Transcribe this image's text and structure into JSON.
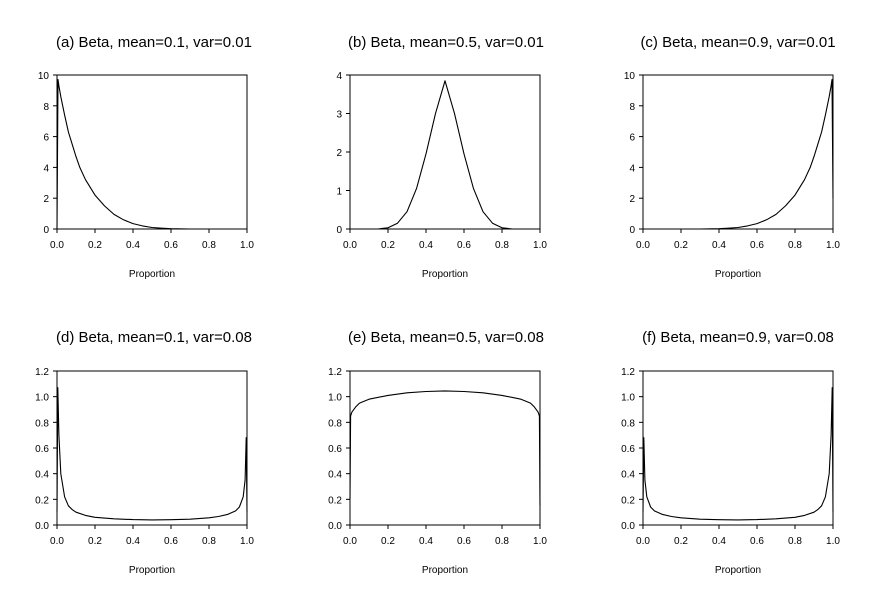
{
  "chart_data": [
    {
      "type": "line",
      "title": "(a) Beta, mean=0.1, var=0.01",
      "xlabel": "Proportion",
      "ylabel": "",
      "xlim": [
        0,
        1
      ],
      "ylim": [
        0,
        10
      ],
      "xticks": [
        "0.0",
        "0.2",
        "0.4",
        "0.6",
        "0.8",
        "1.0"
      ],
      "yticks": [
        "0",
        "2",
        "4",
        "6",
        "8",
        "10"
      ],
      "series": [
        {
          "x": [
            0.0,
            0.005,
            0.01,
            0.02,
            0.04,
            0.06,
            0.08,
            0.1,
            0.12,
            0.15,
            0.2,
            0.25,
            0.3,
            0.35,
            0.4,
            0.45,
            0.5,
            0.55,
            0.6,
            0.7,
            0.8,
            0.9,
            1.0
          ],
          "y": [
            0.0,
            9.7,
            9.3,
            8.6,
            7.4,
            6.3,
            5.5,
            4.7,
            4.0,
            3.2,
            2.2,
            1.5,
            0.95,
            0.6,
            0.35,
            0.2,
            0.1,
            0.05,
            0.02,
            0.0,
            0.0,
            0.0,
            0.0
          ]
        }
      ]
    },
    {
      "type": "line",
      "title": "(b) Beta, mean=0.5, var=0.01",
      "xlabel": "Proportion",
      "ylabel": "",
      "xlim": [
        0,
        1
      ],
      "ylim": [
        0,
        4
      ],
      "xticks": [
        "0.0",
        "0.2",
        "0.4",
        "0.6",
        "0.8",
        "1.0"
      ],
      "yticks": [
        "0",
        "1",
        "2",
        "3",
        "4"
      ],
      "series": [
        {
          "x": [
            0.0,
            0.1,
            0.15,
            0.2,
            0.25,
            0.3,
            0.35,
            0.4,
            0.45,
            0.5,
            0.55,
            0.6,
            0.65,
            0.7,
            0.75,
            0.8,
            0.85,
            0.9,
            1.0
          ],
          "y": [
            0.0,
            0.0,
            0.003,
            0.03,
            0.15,
            0.45,
            1.05,
            1.95,
            3.0,
            3.85,
            3.0,
            1.95,
            1.05,
            0.45,
            0.15,
            0.03,
            0.003,
            0.0,
            0.0
          ]
        }
      ]
    },
    {
      "type": "line",
      "title": "(c) Beta, mean=0.9, var=0.01",
      "xlabel": "Proportion",
      "ylabel": "",
      "xlim": [
        0,
        1
      ],
      "ylim": [
        0,
        10
      ],
      "xticks": [
        "0.0",
        "0.2",
        "0.4",
        "0.6",
        "0.8",
        "1.0"
      ],
      "yticks": [
        "0",
        "2",
        "4",
        "6",
        "8",
        "10"
      ],
      "series": [
        {
          "x": [
            0.0,
            0.1,
            0.2,
            0.3,
            0.4,
            0.45,
            0.5,
            0.55,
            0.6,
            0.65,
            0.7,
            0.75,
            0.8,
            0.85,
            0.88,
            0.9,
            0.92,
            0.94,
            0.96,
            0.98,
            0.99,
            0.995,
            1.0
          ],
          "y": [
            0.0,
            0.0,
            0.0,
            0.0,
            0.02,
            0.05,
            0.1,
            0.2,
            0.35,
            0.6,
            0.95,
            1.5,
            2.2,
            3.2,
            4.0,
            4.7,
            5.5,
            6.3,
            7.4,
            8.6,
            9.3,
            9.7,
            2.0
          ]
        }
      ]
    },
    {
      "type": "line",
      "title": "(d) Beta, mean=0.1, var=0.08",
      "xlabel": "Proportion",
      "ylabel": "",
      "xlim": [
        0,
        1
      ],
      "ylim": [
        0,
        1.2
      ],
      "xticks": [
        "0.0",
        "0.2",
        "0.4",
        "0.6",
        "0.8",
        "1.0"
      ],
      "yticks": [
        "0.0",
        "0.2",
        "0.4",
        "0.6",
        "0.8",
        "1.0",
        "1.2"
      ],
      "series": [
        {
          "x": [
            0.0,
            0.004,
            0.01,
            0.02,
            0.04,
            0.06,
            0.08,
            0.1,
            0.15,
            0.2,
            0.3,
            0.4,
            0.5,
            0.6,
            0.7,
            0.8,
            0.85,
            0.9,
            0.94,
            0.96,
            0.98,
            0.99,
            0.996,
            1.0
          ],
          "y": [
            0.1,
            1.07,
            0.7,
            0.4,
            0.22,
            0.15,
            0.12,
            0.1,
            0.075,
            0.06,
            0.048,
            0.042,
            0.04,
            0.041,
            0.045,
            0.056,
            0.066,
            0.083,
            0.11,
            0.14,
            0.22,
            0.35,
            0.68,
            0.1
          ]
        }
      ]
    },
    {
      "type": "line",
      "title": "(e) Beta, mean=0.5, var=0.08",
      "xlabel": "Proportion",
      "ylabel": "",
      "xlim": [
        0,
        1
      ],
      "ylim": [
        0,
        1.2
      ],
      "xticks": [
        "0.0",
        "0.2",
        "0.4",
        "0.6",
        "0.8",
        "1.0"
      ],
      "yticks": [
        "0.0",
        "0.2",
        "0.4",
        "0.6",
        "0.8",
        "1.0",
        "1.2"
      ],
      "series": [
        {
          "x": [
            0.0,
            0.003,
            0.01,
            0.03,
            0.05,
            0.1,
            0.2,
            0.3,
            0.4,
            0.5,
            0.6,
            0.7,
            0.8,
            0.9,
            0.95,
            0.97,
            0.99,
            0.997,
            1.0
          ],
          "y": [
            0.2,
            0.85,
            0.88,
            0.92,
            0.95,
            0.98,
            1.01,
            1.03,
            1.04,
            1.045,
            1.04,
            1.03,
            1.01,
            0.98,
            0.95,
            0.92,
            0.88,
            0.85,
            0.15
          ]
        }
      ]
    },
    {
      "type": "line",
      "title": "(f) Beta, mean=0.9, var=0.08",
      "xlabel": "Proportion",
      "ylabel": "",
      "xlim": [
        0,
        1
      ],
      "ylim": [
        0,
        1.2
      ],
      "xticks": [
        "0.0",
        "0.2",
        "0.4",
        "0.6",
        "0.8",
        "1.0"
      ],
      "yticks": [
        "0.0",
        "0.2",
        "0.4",
        "0.6",
        "0.8",
        "1.0",
        "1.2"
      ],
      "series": [
        {
          "x": [
            0.0,
            0.004,
            0.01,
            0.02,
            0.04,
            0.06,
            0.1,
            0.15,
            0.2,
            0.3,
            0.4,
            0.5,
            0.6,
            0.7,
            0.8,
            0.85,
            0.9,
            0.92,
            0.94,
            0.96,
            0.98,
            0.99,
            0.996,
            1.0
          ],
          "y": [
            0.1,
            0.68,
            0.35,
            0.22,
            0.14,
            0.11,
            0.083,
            0.066,
            0.056,
            0.045,
            0.041,
            0.04,
            0.042,
            0.048,
            0.06,
            0.075,
            0.1,
            0.12,
            0.15,
            0.22,
            0.4,
            0.7,
            1.07,
            0.1
          ]
        }
      ]
    }
  ]
}
